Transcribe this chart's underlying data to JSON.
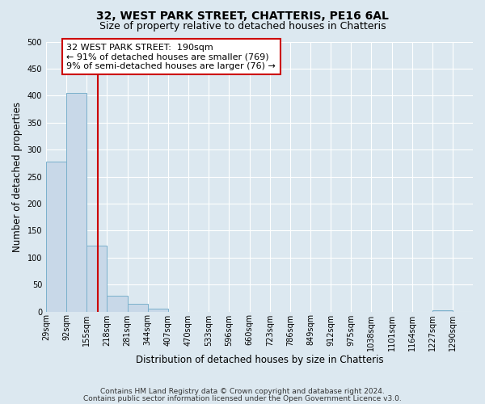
{
  "title": "32, WEST PARK STREET, CHATTERIS, PE16 6AL",
  "subtitle": "Size of property relative to detached houses in Chatteris",
  "xlabel": "Distribution of detached houses by size in Chatteris",
  "ylabel": "Number of detached properties",
  "bin_edges": [
    29,
    92,
    155,
    218,
    281,
    344,
    407,
    470,
    533,
    596,
    660,
    723,
    786,
    849,
    912,
    975,
    1038,
    1101,
    1164,
    1227,
    1290
  ],
  "bin_labels": [
    "29sqm",
    "92sqm",
    "155sqm",
    "218sqm",
    "281sqm",
    "344sqm",
    "407sqm",
    "470sqm",
    "533sqm",
    "596sqm",
    "660sqm",
    "723sqm",
    "786sqm",
    "849sqm",
    "912sqm",
    "975sqm",
    "1038sqm",
    "1101sqm",
    "1164sqm",
    "1227sqm",
    "1290sqm"
  ],
  "bar_heights": [
    277,
    405,
    122,
    29,
    15,
    5,
    0,
    0,
    0,
    0,
    0,
    0,
    0,
    0,
    0,
    0,
    0,
    0,
    0,
    3
  ],
  "bar_color": "#c8d8e8",
  "bar_edge_color": "#7ab0cc",
  "property_line_x": 190,
  "property_line_color": "#cc0000",
  "annotation_line1": "32 WEST PARK STREET:  190sqm",
  "annotation_line2": "← 91% of detached houses are smaller (769)",
  "annotation_line3": "9% of semi-detached houses are larger (76) →",
  "annotation_box_color": "#ffffff",
  "annotation_box_edge_color": "#cc0000",
  "ylim": [
    0,
    500
  ],
  "footnote1": "Contains HM Land Registry data © Crown copyright and database right 2024.",
  "footnote2": "Contains public sector information licensed under the Open Government Licence v3.0.",
  "background_color": "#dce8f0",
  "plot_background_color": "#dce8f0",
  "grid_color": "#ffffff",
  "title_fontsize": 10,
  "subtitle_fontsize": 9,
  "axis_label_fontsize": 8.5,
  "tick_fontsize": 7,
  "annotation_fontsize": 8,
  "footnote_fontsize": 6.5
}
